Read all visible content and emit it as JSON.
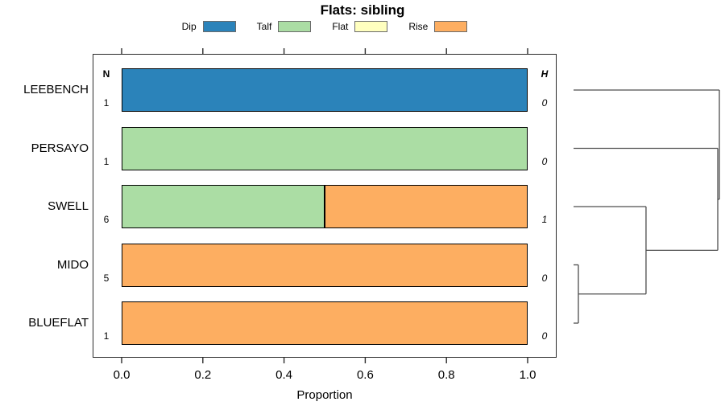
{
  "chart_data": {
    "type": "bar",
    "orientation": "horizontal-stacked",
    "title": "Flats: sibling",
    "xlabel": "Proportion",
    "xlim": [
      0,
      1
    ],
    "xticks": [
      0,
      0.2,
      0.4,
      0.6,
      0.8,
      1
    ],
    "xtick_labels": [
      "0.0",
      "0.2",
      "0.4",
      "0.6",
      "0.8",
      "1.0"
    ],
    "grid": false,
    "categories": [
      "LEEBENCH",
      "PERSAYO",
      "SWELL",
      "MIDO",
      "BLUEFLAT"
    ],
    "n_column": {
      "header": "N",
      "values": [
        "1",
        "1",
        "6",
        "5",
        "1"
      ]
    },
    "h_column": {
      "header": "H",
      "values": [
        "0",
        "0",
        "1",
        "0",
        "0"
      ]
    },
    "series": [
      {
        "name": "Dip",
        "color": "#2B83BA",
        "values": [
          1,
          0,
          0,
          0,
          0
        ]
      },
      {
        "name": "Talf",
        "color": "#ABDDA4",
        "values": [
          0,
          1,
          0.5,
          0,
          0
        ]
      },
      {
        "name": "Flat",
        "color": "#FFFFBF",
        "values": [
          0,
          0,
          0,
          0,
          0
        ]
      },
      {
        "name": "Rise",
        "color": "#FDAE61",
        "values": [
          0,
          0,
          0.5,
          1,
          1
        ]
      }
    ],
    "legend": {
      "position": "top",
      "entries": [
        "Dip",
        "Talf",
        "Flat",
        "Rise"
      ]
    },
    "dendrogram": {
      "side": "right",
      "leaves": [
        "LEEBENCH",
        "PERSAYO",
        "SWELL",
        "MIDO",
        "BLUEFLAT"
      ],
      "merges": [
        {
          "id": "m0",
          "children": [
            "MIDO",
            "BLUEFLAT"
          ],
          "height": 0.033
        },
        {
          "id": "m1",
          "children": [
            "SWELL",
            "m0"
          ],
          "height": 0.497
        },
        {
          "id": "m2",
          "children": [
            "PERSAYO",
            "m1"
          ],
          "height": 0.989
        },
        {
          "id": "m3",
          "children": [
            "LEEBENCH",
            "m2"
          ],
          "height": 1.0
        }
      ]
    }
  }
}
